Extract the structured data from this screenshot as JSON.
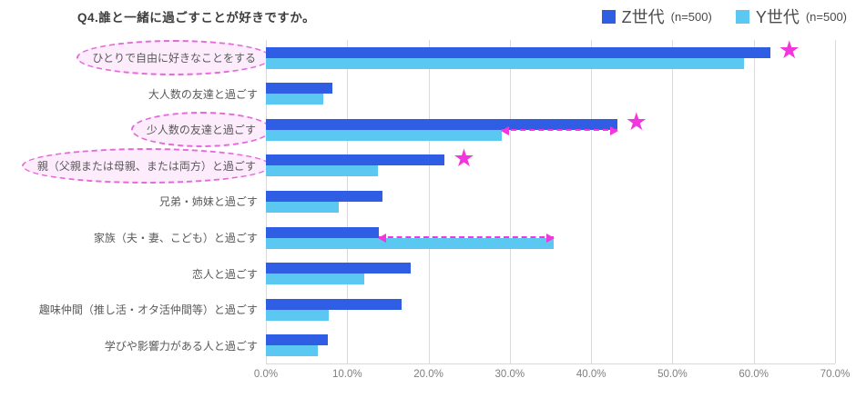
{
  "title": "Q4.誰と一緒に過ごすことが好きですか。",
  "legend": [
    {
      "label": "Z世代",
      "n": "(n=500)",
      "color": "#2f5de4"
    },
    {
      "label": "Y世代",
      "n": "(n=500)",
      "color": "#5ac8f0"
    }
  ],
  "chart_data": {
    "type": "bar",
    "orientation": "horizontal",
    "title": "Q4.誰と一緒に過ごすことが好きですか。",
    "categories": [
      "ひとりで自由に好きなことをする",
      "大人数の友達と過ごす",
      "少人数の友達と過ごす",
      "親（父親または母親、または両方）と過ごす",
      "兄弟・姉妹と過ごす",
      "家族（夫・妻、こども）と過ごす",
      "恋人と過ごす",
      "趣味仲間（推し活・オタ活仲間等）と過ごす",
      "学びや影響力がある人と過ごす"
    ],
    "series": [
      {
        "name": "Z世代 (n=500)",
        "color": "#2f5de4",
        "values": [
          62.0,
          8.2,
          43.2,
          22.0,
          14.3,
          13.9,
          17.8,
          16.7,
          7.6
        ]
      },
      {
        "name": "Y世代 (n=500)",
        "color": "#5ac8f0",
        "values": [
          58.8,
          7.0,
          29.0,
          13.8,
          9.0,
          35.4,
          12.1,
          7.7,
          6.4
        ]
      }
    ],
    "xlim": [
      0,
      70
    ],
    "xticks": [
      0,
      10,
      20,
      30,
      40,
      50,
      60,
      70
    ],
    "xtick_labels": [
      "0.0%",
      "10.0%",
      "20.0%",
      "30.0%",
      "40.0%",
      "50.0%",
      "60.0%",
      "70.0%"
    ],
    "grid": true,
    "legend_position": "top-right",
    "annotations": {
      "circled_category_indexes": [
        0,
        2,
        3
      ],
      "star_category_indexes": [
        0,
        2,
        3
      ],
      "gap_arrow_category_indexes": [
        2,
        5
      ],
      "star_color": "#f136dd",
      "arrow_color": "#f136dd",
      "circle_color": "#e36ad8"
    }
  }
}
